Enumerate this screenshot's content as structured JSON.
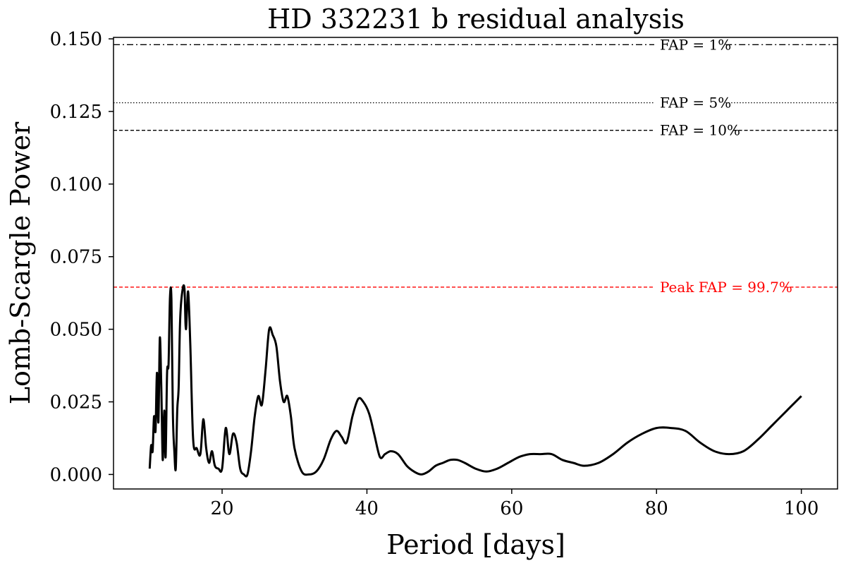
{
  "chart_data": {
    "type": "line",
    "title": "HD 332231 b residual analysis",
    "xlabel": "Period [days]",
    "ylabel": "Lomb-Scargle Power",
    "xlim": [
      5,
      105
    ],
    "ylim": [
      -0.005,
      0.1505
    ],
    "xticks": [
      20,
      40,
      60,
      80,
      100
    ],
    "xtick_labels": [
      "20",
      "40",
      "60",
      "80",
      "100"
    ],
    "yticks": [
      0.0,
      0.025,
      0.05,
      0.075,
      0.1,
      0.125,
      0.15
    ],
    "ytick_labels": [
      "0.000",
      "0.025",
      "0.050",
      "0.075",
      "0.100",
      "0.125",
      "0.150"
    ],
    "grid": false,
    "series": [
      {
        "color": "#000000",
        "x": [
          10.0,
          10.2,
          10.4,
          10.6,
          10.8,
          11.0,
          11.2,
          11.4,
          11.6,
          11.8,
          12.0,
          12.2,
          12.4,
          12.6,
          12.8,
          13.0,
          13.2,
          13.4,
          13.6,
          13.8,
          14.0,
          14.2,
          14.5,
          14.8,
          15.0,
          15.3,
          15.6,
          16.0,
          16.5,
          17.0,
          17.4,
          17.8,
          18.2,
          18.6,
          19.0,
          19.5,
          20.0,
          20.5,
          21.0,
          21.5,
          22.0,
          22.5,
          23.0,
          23.5,
          24.0,
          24.5,
          25.0,
          25.5,
          26.0,
          26.5,
          27.0,
          27.5,
          28.0,
          28.5,
          29.0,
          29.5,
          30.0,
          31.0,
          32.0,
          33.0,
          34.0,
          35.0,
          35.8,
          36.5,
          37.2,
          38.0,
          38.8,
          39.5,
          40.3,
          41.0,
          41.8,
          42.5,
          43.3,
          44.3,
          45.5,
          46.5,
          47.5,
          48.5,
          49.5,
          50.5,
          51.5,
          52.5,
          53.5,
          55.0,
          56.5,
          58.0,
          59.5,
          61.0,
          62.5,
          64.0,
          65.5,
          67.0,
          68.5,
          70.0,
          72.0,
          74.0,
          76.0,
          78.0,
          80.0,
          82.0,
          84.0,
          86.0,
          88.0,
          90.0,
          92.0,
          94.0,
          96.0,
          98.0,
          100.0
        ],
        "values": [
          0.002,
          0.01,
          0.008,
          0.02,
          0.015,
          0.035,
          0.018,
          0.047,
          0.03,
          0.005,
          0.022,
          0.006,
          0.035,
          0.038,
          0.061,
          0.06,
          0.021,
          0.008,
          0.002,
          0.022,
          0.03,
          0.053,
          0.063,
          0.064,
          0.05,
          0.063,
          0.045,
          0.012,
          0.009,
          0.007,
          0.019,
          0.009,
          0.004,
          0.008,
          0.003,
          0.002,
          0.002,
          0.016,
          0.007,
          0.014,
          0.011,
          0.002,
          0.0,
          0.0,
          0.008,
          0.02,
          0.027,
          0.024,
          0.036,
          0.05,
          0.048,
          0.044,
          0.032,
          0.025,
          0.027,
          0.02,
          0.009,
          0.001,
          0.0,
          0.001,
          0.005,
          0.012,
          0.015,
          0.013,
          0.011,
          0.02,
          0.026,
          0.025,
          0.021,
          0.014,
          0.006,
          0.007,
          0.008,
          0.007,
          0.003,
          0.001,
          0.0,
          0.001,
          0.003,
          0.004,
          0.005,
          0.005,
          0.004,
          0.002,
          0.001,
          0.002,
          0.004,
          0.006,
          0.007,
          0.007,
          0.007,
          0.005,
          0.004,
          0.003,
          0.004,
          0.007,
          0.011,
          0.014,
          0.016,
          0.016,
          0.015,
          0.011,
          0.008,
          0.007,
          0.008,
          0.012,
          0.017,
          0.022,
          0.027
        ]
      }
    ],
    "hlines": [
      {
        "y": 0.148,
        "label": "FAP = 1%",
        "style": "dashdot",
        "color": "#000000"
      },
      {
        "y": 0.128,
        "label": "FAP = 5%",
        "style": "dotted",
        "color": "#000000"
      },
      {
        "y": 0.1185,
        "label": "FAP = 10%",
        "style": "dashed",
        "color": "#000000"
      },
      {
        "y": 0.0645,
        "label": "Peak FAP = 99.7%",
        "style": "dashed",
        "color": "#ff0000"
      }
    ]
  }
}
